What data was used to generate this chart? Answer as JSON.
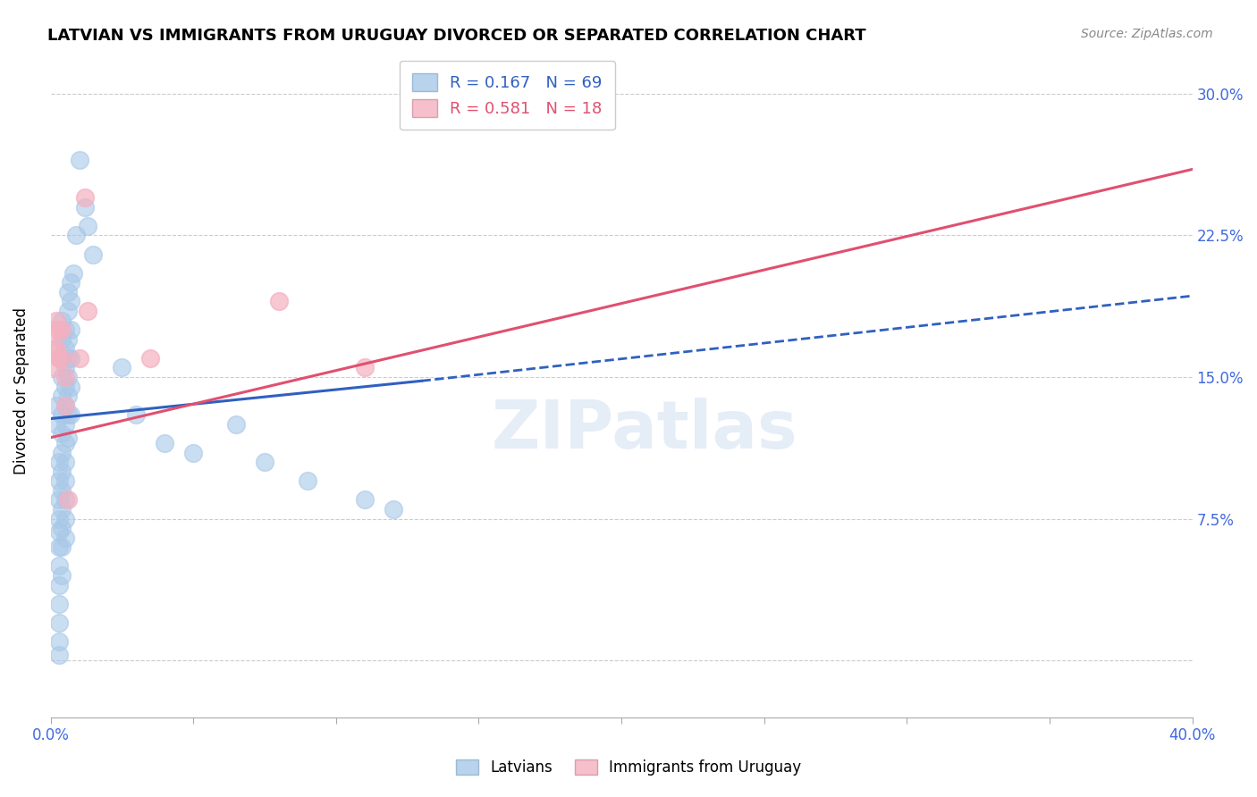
{
  "title": "LATVIAN VS IMMIGRANTS FROM URUGUAY DIVORCED OR SEPARATED CORRELATION CHART",
  "source": "Source: ZipAtlas.com",
  "ylabel": "Divorced or Separated",
  "x_min": 0.0,
  "x_max": 0.4,
  "y_min": -0.03,
  "y_max": 0.315,
  "yticks": [
    0.0,
    0.075,
    0.15,
    0.225,
    0.3
  ],
  "ytick_labels": [
    "",
    "7.5%",
    "15.0%",
    "22.5%",
    "30.0%"
  ],
  "xticks": [
    0.0,
    0.05,
    0.1,
    0.15,
    0.2,
    0.25,
    0.3,
    0.35,
    0.4
  ],
  "xtick_labels": [
    "0.0%",
    "",
    "",
    "",
    "",
    "",
    "",
    "",
    "40.0%"
  ],
  "legend1_r": "0.167",
  "legend1_n": "69",
  "legend2_r": "0.581",
  "legend2_n": "18",
  "blue_scatter_color": "#a8c8e8",
  "pink_scatter_color": "#f4b0c0",
  "blue_line_color": "#3060c0",
  "pink_line_color": "#e05070",
  "tick_color": "#4169e1",
  "grid_color": "#cccccc",
  "watermark": "ZIPatlas",
  "latvians_scatter": [
    [
      0.002,
      0.135
    ],
    [
      0.002,
      0.125
    ],
    [
      0.003,
      0.105
    ],
    [
      0.003,
      0.095
    ],
    [
      0.003,
      0.085
    ],
    [
      0.003,
      0.075
    ],
    [
      0.003,
      0.068
    ],
    [
      0.003,
      0.06
    ],
    [
      0.003,
      0.05
    ],
    [
      0.003,
      0.04
    ],
    [
      0.003,
      0.03
    ],
    [
      0.003,
      0.02
    ],
    [
      0.003,
      0.01
    ],
    [
      0.003,
      0.003
    ],
    [
      0.004,
      0.18
    ],
    [
      0.004,
      0.17
    ],
    [
      0.004,
      0.16
    ],
    [
      0.004,
      0.15
    ],
    [
      0.004,
      0.14
    ],
    [
      0.004,
      0.13
    ],
    [
      0.004,
      0.12
    ],
    [
      0.004,
      0.11
    ],
    [
      0.004,
      0.1
    ],
    [
      0.004,
      0.09
    ],
    [
      0.004,
      0.08
    ],
    [
      0.004,
      0.07
    ],
    [
      0.004,
      0.06
    ],
    [
      0.004,
      0.045
    ],
    [
      0.005,
      0.175
    ],
    [
      0.005,
      0.165
    ],
    [
      0.005,
      0.155
    ],
    [
      0.005,
      0.145
    ],
    [
      0.005,
      0.135
    ],
    [
      0.005,
      0.125
    ],
    [
      0.005,
      0.115
    ],
    [
      0.005,
      0.105
    ],
    [
      0.005,
      0.095
    ],
    [
      0.005,
      0.085
    ],
    [
      0.005,
      0.075
    ],
    [
      0.005,
      0.065
    ],
    [
      0.006,
      0.195
    ],
    [
      0.006,
      0.185
    ],
    [
      0.006,
      0.17
    ],
    [
      0.006,
      0.16
    ],
    [
      0.006,
      0.15
    ],
    [
      0.006,
      0.14
    ],
    [
      0.006,
      0.13
    ],
    [
      0.006,
      0.118
    ],
    [
      0.007,
      0.2
    ],
    [
      0.007,
      0.19
    ],
    [
      0.007,
      0.175
    ],
    [
      0.007,
      0.16
    ],
    [
      0.007,
      0.145
    ],
    [
      0.007,
      0.13
    ],
    [
      0.008,
      0.205
    ],
    [
      0.009,
      0.225
    ],
    [
      0.01,
      0.265
    ],
    [
      0.012,
      0.24
    ],
    [
      0.013,
      0.23
    ],
    [
      0.015,
      0.215
    ],
    [
      0.025,
      0.155
    ],
    [
      0.03,
      0.13
    ],
    [
      0.04,
      0.115
    ],
    [
      0.05,
      0.11
    ],
    [
      0.065,
      0.125
    ],
    [
      0.075,
      0.105
    ],
    [
      0.09,
      0.095
    ],
    [
      0.11,
      0.085
    ],
    [
      0.12,
      0.08
    ]
  ],
  "uruguay_scatter": [
    [
      0.001,
      0.175
    ],
    [
      0.001,
      0.165
    ],
    [
      0.001,
      0.155
    ],
    [
      0.002,
      0.18
    ],
    [
      0.002,
      0.165
    ],
    [
      0.003,
      0.175
    ],
    [
      0.003,
      0.16
    ],
    [
      0.004,
      0.175
    ],
    [
      0.004,
      0.16
    ],
    [
      0.005,
      0.15
    ],
    [
      0.005,
      0.135
    ],
    [
      0.006,
      0.085
    ],
    [
      0.01,
      0.16
    ],
    [
      0.012,
      0.245
    ],
    [
      0.013,
      0.185
    ],
    [
      0.035,
      0.16
    ],
    [
      0.08,
      0.19
    ],
    [
      0.11,
      0.155
    ]
  ],
  "blue_trendline_solid": [
    [
      0.0,
      0.128
    ],
    [
      0.13,
      0.148
    ]
  ],
  "blue_trendline_dashed": [
    [
      0.13,
      0.148
    ],
    [
      0.4,
      0.193
    ]
  ],
  "pink_trendline": [
    [
      0.0,
      0.118
    ],
    [
      0.4,
      0.26
    ]
  ]
}
